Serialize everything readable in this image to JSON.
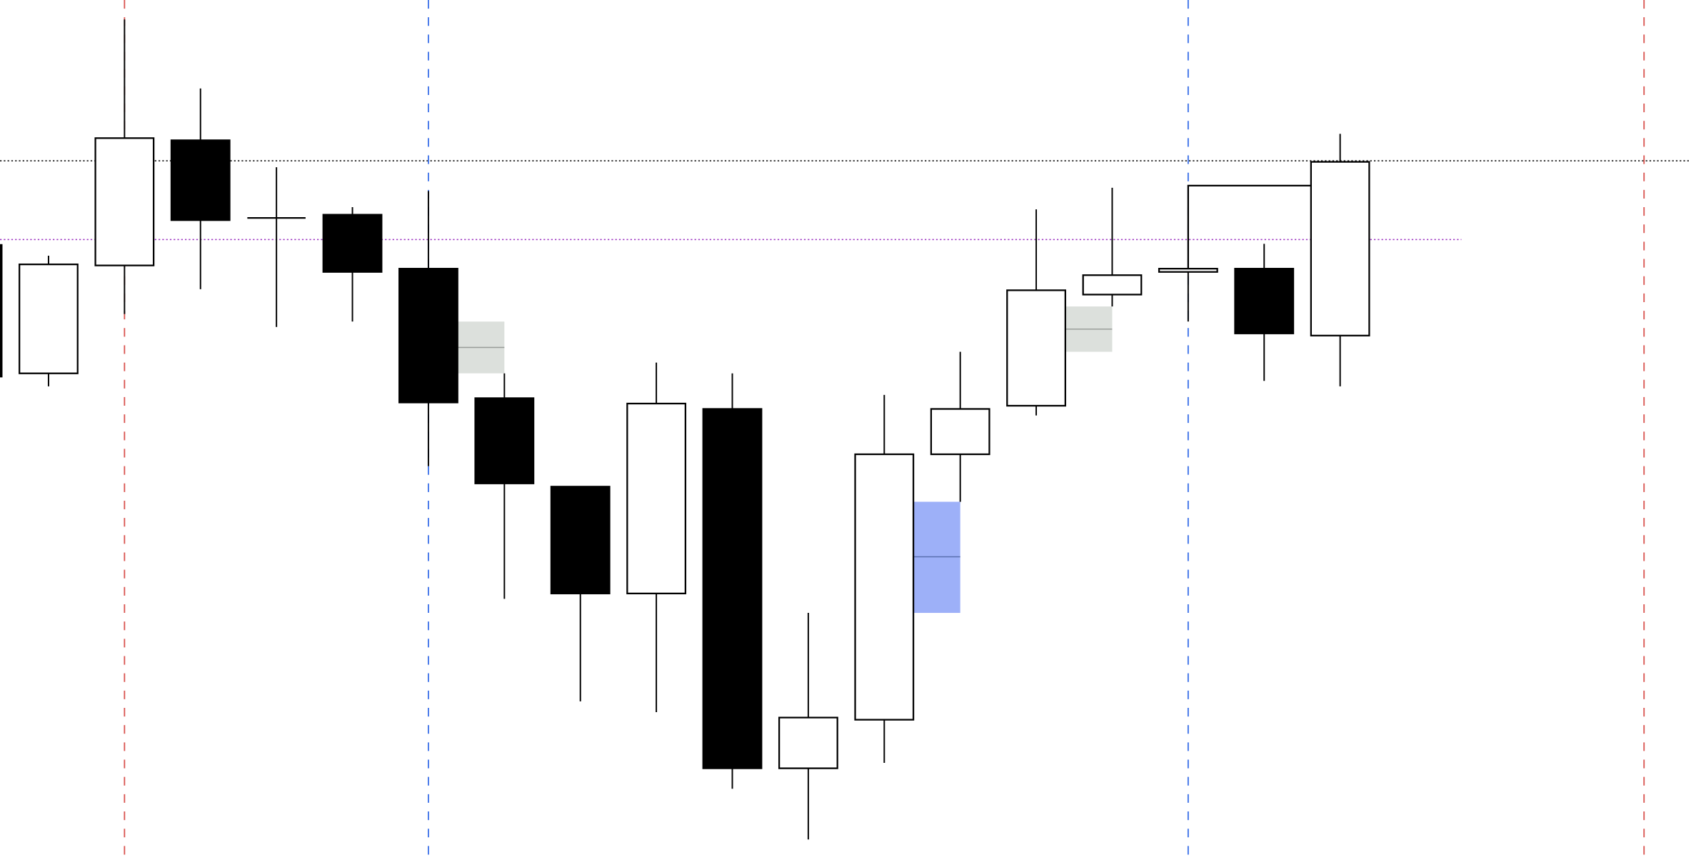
{
  "chart_data": {
    "type": "candlestick",
    "title": "",
    "xlabel": "",
    "ylabel": "",
    "xlim": [
      -1,
      21.6
    ],
    "ylim": [
      0,
      797
    ],
    "grid": false,
    "colors": {
      "bull_fill": "#ffffff",
      "bear_fill": "#000000",
      "outline": "#000000",
      "red_marker": "#d9534f",
      "blue_marker": "#3b6fe8",
      "resistance_line": "#000000",
      "purple_line": "#9b30c0",
      "grey_zone": "#dce0dc",
      "grey_zone_mid": "#9a9e9a",
      "blue_zone": "#9db0f8",
      "blue_zone_mid": "#5a6fb0"
    },
    "candles": [
      {
        "i": -1,
        "o": 570,
        "h": 570,
        "l": 448,
        "c": 448
      },
      {
        "i": 0,
        "o": 451,
        "h": 560,
        "l": 439,
        "c": 552
      },
      {
        "i": 1,
        "o": 551,
        "h": 779,
        "l": 506,
        "c": 669
      },
      {
        "i": 2,
        "o": 667,
        "h": 715,
        "l": 529,
        "c": 593
      },
      {
        "i": 3,
        "o": 595,
        "h": 642,
        "l": 494,
        "c": 595
      },
      {
        "i": 4,
        "o": 598,
        "h": 605,
        "l": 499,
        "c": 545
      },
      {
        "i": 5,
        "o": 548,
        "h": 620,
        "l": 365,
        "c": 424
      },
      {
        "i": 6,
        "o": 428,
        "h": 451,
        "l": 242,
        "c": 349
      },
      {
        "i": 7,
        "o": 346,
        "h": 346,
        "l": 147,
        "c": 247
      },
      {
        "i": 8,
        "o": 247,
        "h": 461,
        "l": 137,
        "c": 423
      },
      {
        "i": 9,
        "o": 418,
        "h": 451,
        "l": 66,
        "c": 85
      },
      {
        "i": 10,
        "o": 85,
        "h": 229,
        "l": 19,
        "c": 132
      },
      {
        "i": 11,
        "o": 130,
        "h": 431,
        "l": 90,
        "c": 376
      },
      {
        "i": 12,
        "o": 376,
        "h": 471,
        "l": 332,
        "c": 418
      },
      {
        "i": 13,
        "o": 421,
        "h": 603,
        "l": 412,
        "c": 528
      },
      {
        "i": 14,
        "o": 524,
        "h": 623,
        "l": 513,
        "c": 542
      },
      {
        "i": 15,
        "o": 545,
        "h": 548,
        "l": 499,
        "c": 548
      },
      {
        "i": 16,
        "o": 548,
        "h": 571,
        "l": 444,
        "c": 488
      },
      {
        "i": 17,
        "o": 486,
        "h": 673,
        "l": 439,
        "c": 647
      }
    ],
    "horizontal_lines": [
      {
        "value": 648,
        "style": "dotted",
        "color_key": "resistance_line",
        "extent": "full"
      },
      {
        "value": 575,
        "style": "dotted",
        "color_key": "purple_line",
        "extent_to_index": 18
      }
    ],
    "vertical_lines": [
      {
        "index": 1,
        "color_key": "red_marker"
      },
      {
        "index": 5,
        "color_key": "blue_marker"
      },
      {
        "index": 15,
        "color_key": "blue_marker"
      },
      {
        "index": 21,
        "color_key": "red_marker"
      }
    ],
    "zones": [
      {
        "from_index": 5,
        "to_index": 6,
        "top": 499,
        "bottom": 451,
        "mid": 475,
        "color_key": "grey_zone",
        "mid_color_key": "grey_zone_mid"
      },
      {
        "from_index": 11,
        "to_index": 12,
        "top": 332,
        "bottom": 229,
        "mid": 281,
        "color_key": "blue_zone",
        "mid_color_key": "blue_zone_mid"
      },
      {
        "from_index": 13,
        "to_index": 14,
        "top": 513,
        "bottom": 471,
        "mid": 492,
        "color_key": "grey_zone",
        "mid_color_key": "grey_zone_mid"
      }
    ],
    "bracket": {
      "from_index": 15,
      "to_index": 17,
      "level": 625,
      "base": 548
    }
  }
}
